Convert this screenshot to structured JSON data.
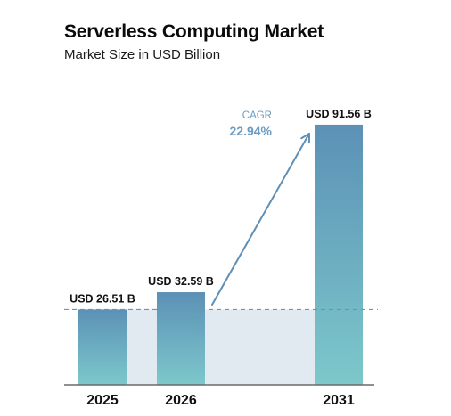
{
  "title": "Serverless Computing Market",
  "subtitle": "Market Size in USD Billion",
  "colors": {
    "bar_top": "#5b91b6",
    "bar_bottom": "#7dc8cb",
    "band_fill": "#e1eaf1",
    "reference_line": "#6a96b5",
    "arrow": "#5f8fb5",
    "cagr_text": "#6a9cc2",
    "axis": "#6a6a6a",
    "text": "#111111"
  },
  "chart_data": {
    "type": "bar",
    "categories": [
      "2025",
      "2026",
      "2031"
    ],
    "values": [
      26.51,
      32.59,
      91.56
    ],
    "units": "USD Billion",
    "labels": [
      "USD 26.51 B",
      "USD 32.59 B",
      "USD 91.56 B"
    ],
    "ylim": [
      0,
      100
    ],
    "reference_line": 26.51,
    "annotation": {
      "label": "CAGR",
      "value": "22.94%",
      "from_category": "2026",
      "to_category": "2031"
    },
    "xlabel": "",
    "ylabel": "",
    "grid": false
  }
}
